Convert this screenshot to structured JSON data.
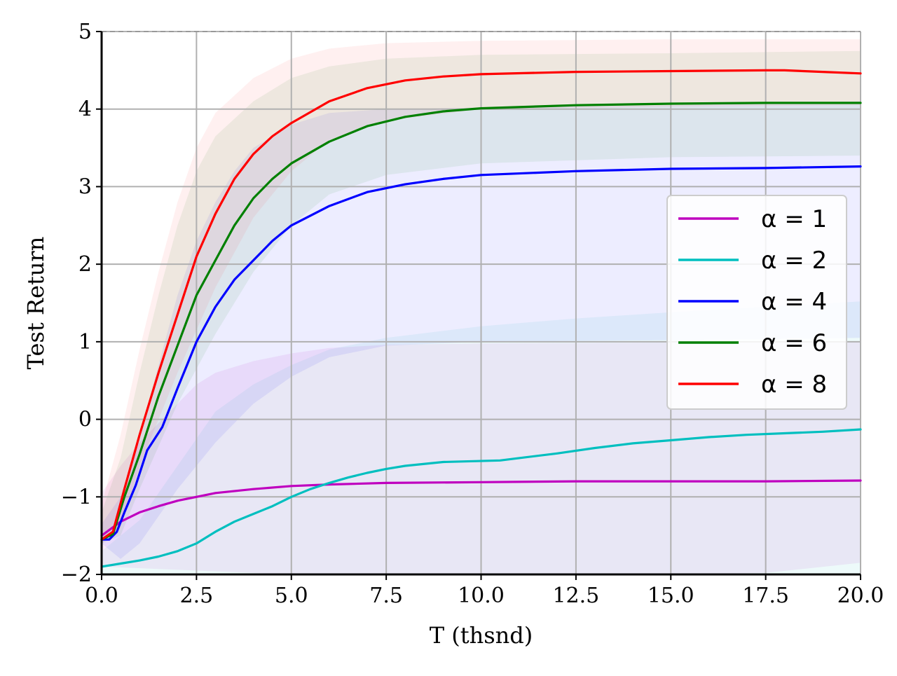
{
  "chart_data": {
    "type": "line",
    "title": "",
    "xlabel": "T (thsnd)",
    "ylabel": "Test Return",
    "xlim": [
      0,
      20
    ],
    "ylim": [
      -2,
      5
    ],
    "xticks": [
      0,
      2.5,
      5,
      7.5,
      10,
      12.5,
      15,
      17.5,
      20
    ],
    "xtick_labels": [
      "0.0",
      "2.5",
      "5.0",
      "7.5",
      "10.0",
      "12.5",
      "15.0",
      "17.5",
      "20.0"
    ],
    "yticks": [
      -2,
      -1,
      0,
      1,
      2,
      3,
      4,
      5
    ],
    "ytick_labels": [
      "−2",
      "−1",
      "0",
      "1",
      "2",
      "3",
      "4",
      "5"
    ],
    "grid": true,
    "legend_position": "center-right",
    "reference_line": {
      "y": 5,
      "style": "dashed",
      "color": "#999999"
    },
    "series": [
      {
        "name": "α = 1",
        "color": "#bf00bf",
        "band_opacity": 0.08,
        "points": [
          [
            0,
            -1.5
          ],
          [
            0.5,
            -1.32
          ],
          [
            1,
            -1.2
          ],
          [
            1.5,
            -1.12
          ],
          [
            2,
            -1.05
          ],
          [
            2.5,
            -1.0
          ],
          [
            3,
            -0.95
          ],
          [
            4,
            -0.9
          ],
          [
            5,
            -0.86
          ],
          [
            6,
            -0.84
          ],
          [
            7.5,
            -0.82
          ],
          [
            10,
            -0.81
          ],
          [
            12.5,
            -0.8
          ],
          [
            15,
            -0.8
          ],
          [
            17.5,
            -0.8
          ],
          [
            20,
            -0.79
          ]
        ],
        "lower": [
          [
            0,
            -1.9
          ],
          [
            2.5,
            -1.95
          ],
          [
            5,
            -2.0
          ],
          [
            10,
            -2.0
          ],
          [
            15,
            -2.0
          ],
          [
            17.5,
            -1.98
          ],
          [
            20,
            -1.85
          ]
        ],
        "upper": [
          [
            0,
            -0.95
          ],
          [
            0.5,
            -0.6
          ],
          [
            1,
            -0.3
          ],
          [
            1.5,
            -0.05
          ],
          [
            2,
            0.2
          ],
          [
            2.5,
            0.45
          ],
          [
            3,
            0.6
          ],
          [
            4,
            0.75
          ],
          [
            5,
            0.85
          ],
          [
            6,
            0.92
          ],
          [
            7.5,
            0.96
          ],
          [
            10,
            0.98
          ],
          [
            15,
            0.99
          ],
          [
            20,
            1.0
          ]
        ]
      },
      {
        "name": "α = 2",
        "color": "#00bfbf",
        "band_opacity": 0.07,
        "points": [
          [
            0,
            -1.9
          ],
          [
            0.5,
            -1.86
          ],
          [
            1,
            -1.82
          ],
          [
            1.5,
            -1.77
          ],
          [
            2,
            -1.7
          ],
          [
            2.5,
            -1.6
          ],
          [
            3,
            -1.45
          ],
          [
            3.5,
            -1.32
          ],
          [
            4,
            -1.22
          ],
          [
            4.5,
            -1.12
          ],
          [
            5,
            -1.0
          ],
          [
            5.5,
            -0.9
          ],
          [
            6,
            -0.82
          ],
          [
            6.5,
            -0.75
          ],
          [
            7,
            -0.69
          ],
          [
            7.5,
            -0.64
          ],
          [
            8,
            -0.6
          ],
          [
            9,
            -0.55
          ],
          [
            10.5,
            -0.53
          ],
          [
            11,
            -0.5
          ],
          [
            12,
            -0.44
          ],
          [
            13,
            -0.37
          ],
          [
            14,
            -0.31
          ],
          [
            15,
            -0.27
          ],
          [
            16,
            -0.23
          ],
          [
            17,
            -0.2
          ],
          [
            18,
            -0.18
          ],
          [
            19,
            -0.16
          ],
          [
            20,
            -0.13
          ]
        ],
        "lower": [
          [
            0,
            -2.0
          ],
          [
            5,
            -2.0
          ],
          [
            10,
            -2.0
          ],
          [
            15,
            -2.0
          ],
          [
            20,
            -2.0
          ]
        ],
        "upper": [
          [
            0,
            -1.7
          ],
          [
            1,
            -1.3
          ],
          [
            2,
            -0.6
          ],
          [
            3,
            0.1
          ],
          [
            4,
            0.45
          ],
          [
            5,
            0.7
          ],
          [
            6,
            0.9
          ],
          [
            7.5,
            1.05
          ],
          [
            10,
            1.2
          ],
          [
            12.5,
            1.3
          ],
          [
            15,
            1.38
          ],
          [
            17.5,
            1.45
          ],
          [
            20,
            1.52
          ]
        ]
      },
      {
        "name": "α = 4",
        "color": "#0000ff",
        "band_opacity": 0.07,
        "points": [
          [
            0,
            -1.55
          ],
          [
            0.2,
            -1.55
          ],
          [
            0.4,
            -1.45
          ],
          [
            0.6,
            -1.2
          ],
          [
            0.9,
            -0.85
          ],
          [
            1.2,
            -0.4
          ],
          [
            1.6,
            -0.1
          ],
          [
            2,
            0.4
          ],
          [
            2.5,
            1.0
          ],
          [
            3,
            1.45
          ],
          [
            3.5,
            1.8
          ],
          [
            4,
            2.05
          ],
          [
            4.5,
            2.3
          ],
          [
            5,
            2.5
          ],
          [
            6,
            2.75
          ],
          [
            7,
            2.93
          ],
          [
            8,
            3.03
          ],
          [
            9,
            3.1
          ],
          [
            10,
            3.15
          ],
          [
            12.5,
            3.2
          ],
          [
            15,
            3.23
          ],
          [
            17.5,
            3.24
          ],
          [
            20,
            3.26
          ]
        ],
        "lower": [
          [
            0,
            -1.6
          ],
          [
            0.5,
            -1.8
          ],
          [
            1,
            -1.6
          ],
          [
            2,
            -0.9
          ],
          [
            3,
            -0.3
          ],
          [
            4,
            0.2
          ],
          [
            5,
            0.55
          ],
          [
            6,
            0.8
          ],
          [
            7.5,
            0.95
          ],
          [
            10,
            1.0
          ],
          [
            15,
            1.02
          ],
          [
            20,
            1.05
          ]
        ],
        "upper": [
          [
            0,
            -1.35
          ],
          [
            0.5,
            -1.0
          ],
          [
            1,
            -0.2
          ],
          [
            1.5,
            0.7
          ],
          [
            2,
            1.6
          ],
          [
            2.5,
            2.3
          ],
          [
            3,
            2.8
          ],
          [
            3.5,
            3.2
          ],
          [
            4,
            3.5
          ],
          [
            5,
            3.8
          ],
          [
            6,
            3.95
          ],
          [
            7.5,
            4.0
          ],
          [
            10,
            4.02
          ],
          [
            15,
            4.05
          ],
          [
            20,
            4.1
          ]
        ]
      },
      {
        "name": "α = 6",
        "color": "#008000",
        "band_opacity": 0.07,
        "points": [
          [
            0,
            -1.55
          ],
          [
            0.3,
            -1.48
          ],
          [
            0.6,
            -1.0
          ],
          [
            1,
            -0.45
          ],
          [
            1.5,
            0.3
          ],
          [
            2,
            0.95
          ],
          [
            2.5,
            1.6
          ],
          [
            3,
            2.05
          ],
          [
            3.5,
            2.5
          ],
          [
            4,
            2.85
          ],
          [
            4.5,
            3.1
          ],
          [
            5,
            3.3
          ],
          [
            6,
            3.58
          ],
          [
            7,
            3.78
          ],
          [
            8,
            3.9
          ],
          [
            9,
            3.97
          ],
          [
            10,
            4.01
          ],
          [
            12.5,
            4.05
          ],
          [
            15,
            4.07
          ],
          [
            17.5,
            4.08
          ],
          [
            20,
            4.08
          ]
        ],
        "lower": [
          [
            0,
            -1.6
          ],
          [
            0.5,
            -1.5
          ],
          [
            1,
            -0.9
          ],
          [
            2,
            0.2
          ],
          [
            3,
            1.1
          ],
          [
            4,
            1.9
          ],
          [
            5,
            2.5
          ],
          [
            6,
            2.9
          ],
          [
            7.5,
            3.15
          ],
          [
            10,
            3.3
          ],
          [
            15,
            3.38
          ],
          [
            20,
            3.4
          ]
        ],
        "upper": [
          [
            0,
            -1.2
          ],
          [
            0.5,
            -0.5
          ],
          [
            1,
            0.6
          ],
          [
            1.5,
            1.6
          ],
          [
            2,
            2.5
          ],
          [
            2.5,
            3.2
          ],
          [
            3,
            3.65
          ],
          [
            4,
            4.1
          ],
          [
            5,
            4.4
          ],
          [
            6,
            4.55
          ],
          [
            7.5,
            4.65
          ],
          [
            10,
            4.7
          ],
          [
            15,
            4.72
          ],
          [
            20,
            4.75
          ]
        ]
      },
      {
        "name": "α = 8",
        "color": "#ff0000",
        "band_opacity": 0.06,
        "points": [
          [
            0,
            -1.55
          ],
          [
            0.3,
            -1.45
          ],
          [
            0.6,
            -0.9
          ],
          [
            1,
            -0.2
          ],
          [
            1.5,
            0.6
          ],
          [
            2,
            1.35
          ],
          [
            2.5,
            2.1
          ],
          [
            3,
            2.65
          ],
          [
            3.5,
            3.1
          ],
          [
            4,
            3.42
          ],
          [
            4.5,
            3.65
          ],
          [
            5,
            3.82
          ],
          [
            6,
            4.1
          ],
          [
            7,
            4.27
          ],
          [
            8,
            4.37
          ],
          [
            9,
            4.42
          ],
          [
            10,
            4.45
          ],
          [
            12.5,
            4.48
          ],
          [
            15,
            4.49
          ],
          [
            17.5,
            4.5
          ],
          [
            18,
            4.5
          ],
          [
            19,
            4.48
          ],
          [
            20,
            4.46
          ]
        ],
        "lower": [
          [
            0,
            -1.6
          ],
          [
            0.5,
            -1.4
          ],
          [
            1,
            -0.6
          ],
          [
            2,
            0.6
          ],
          [
            3,
            1.7
          ],
          [
            4,
            2.6
          ],
          [
            5,
            3.2
          ],
          [
            6,
            3.6
          ],
          [
            7.5,
            3.85
          ],
          [
            10,
            4.0
          ],
          [
            15,
            4.03
          ],
          [
            20,
            4.05
          ]
        ],
        "upper": [
          [
            0,
            -1.1
          ],
          [
            0.5,
            -0.2
          ],
          [
            1,
            0.9
          ],
          [
            1.5,
            1.9
          ],
          [
            2,
            2.8
          ],
          [
            2.5,
            3.5
          ],
          [
            3,
            3.95
          ],
          [
            4,
            4.4
          ],
          [
            5,
            4.65
          ],
          [
            6,
            4.78
          ],
          [
            7.5,
            4.85
          ],
          [
            10,
            4.88
          ],
          [
            15,
            4.9
          ],
          [
            20,
            4.9
          ]
        ]
      }
    ]
  }
}
